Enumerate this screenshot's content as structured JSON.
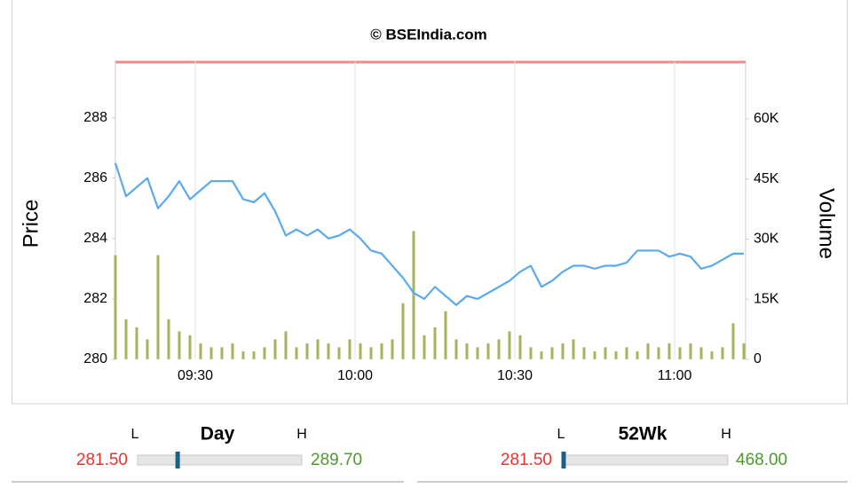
{
  "chart_data": {
    "type": "price-volume",
    "title": "© BSEIndia.com",
    "y_label": "Price",
    "y2_label": "Volume",
    "x": [
      "09:15",
      "09:17",
      "09:19",
      "09:21",
      "09:23",
      "09:25",
      "09:27",
      "09:29",
      "09:31",
      "09:33",
      "09:35",
      "09:37",
      "09:39",
      "09:41",
      "09:43",
      "09:45",
      "09:47",
      "09:49",
      "09:51",
      "09:53",
      "09:55",
      "09:57",
      "09:59",
      "10:01",
      "10:03",
      "10:05",
      "10:07",
      "10:09",
      "10:11",
      "10:13",
      "10:15",
      "10:17",
      "10:19",
      "10:21",
      "10:23",
      "10:25",
      "10:27",
      "10:29",
      "10:31",
      "10:33",
      "10:35",
      "10:37",
      "10:39",
      "10:41",
      "10:43",
      "10:45",
      "10:47",
      "10:49",
      "10:51",
      "10:53",
      "10:55",
      "10:57",
      "10:59",
      "11:01",
      "11:03",
      "11:05",
      "11:07",
      "11:09",
      "11:11",
      "11:13"
    ],
    "xlim": [
      "09:15",
      "11:13"
    ],
    "xticks": [
      "09:30",
      "10:00",
      "10:30",
      "11:00"
    ],
    "ylim": [
      280,
      289.9
    ],
    "yticks": [
      280,
      282,
      284,
      286,
      288
    ],
    "y2lim": [
      0,
      74600
    ],
    "y2ticks": [
      0,
      {
        "value": 15000,
        "label": "15K"
      },
      {
        "value": 30000,
        "label": "30K"
      },
      {
        "value": 45000,
        "label": "45K"
      },
      {
        "value": 60000,
        "label": "60K"
      }
    ],
    "series": [
      {
        "name": "Price",
        "color": "#5aaaf0",
        "values": [
          286.5,
          285.4,
          285.7,
          286.0,
          285.0,
          285.4,
          285.9,
          285.3,
          285.6,
          285.9,
          285.9,
          285.9,
          285.3,
          285.2,
          285.5,
          284.9,
          284.1,
          284.3,
          284.1,
          284.3,
          284.0,
          284.1,
          284.3,
          284.0,
          283.6,
          283.5,
          283.1,
          282.7,
          282.2,
          282.0,
          282.4,
          282.1,
          281.8,
          282.1,
          282.0,
          282.2,
          282.4,
          282.6,
          282.9,
          283.1,
          282.4,
          282.6,
          282.9,
          283.1,
          283.1,
          283.0,
          283.1,
          283.1,
          283.2,
          283.6,
          283.6,
          283.6,
          283.4,
          283.5,
          283.4,
          283.0,
          283.1,
          283.3,
          283.5,
          283.5
        ]
      },
      {
        "name": "Volume",
        "color": "#a6b45e",
        "axis": "y2",
        "values": [
          26000,
          10000,
          8000,
          5000,
          26000,
          10000,
          7000,
          6000,
          4000,
          3000,
          3000,
          4000,
          2000,
          2000,
          3000,
          5000,
          7000,
          3000,
          4000,
          5000,
          4000,
          3000,
          5000,
          4000,
          3000,
          4000,
          5000,
          14000,
          32000,
          6000,
          8000,
          12000,
          5000,
          4000,
          3000,
          4000,
          5000,
          7000,
          6000,
          3000,
          2000,
          3000,
          4000,
          5000,
          3000,
          2000,
          3000,
          2000,
          3000,
          2000,
          4000,
          3000,
          4000,
          3000,
          4000,
          3000,
          2000,
          3000,
          9000,
          4000
        ]
      }
    ]
  },
  "day_range": {
    "title": "Day",
    "low_marker": "L",
    "high_marker": "H",
    "low": "281.50",
    "high": "289.70"
  },
  "week52_range": {
    "title": "52Wk",
    "low_marker": "L",
    "high_marker": "H",
    "low": "281.50",
    "high": "468.00"
  }
}
